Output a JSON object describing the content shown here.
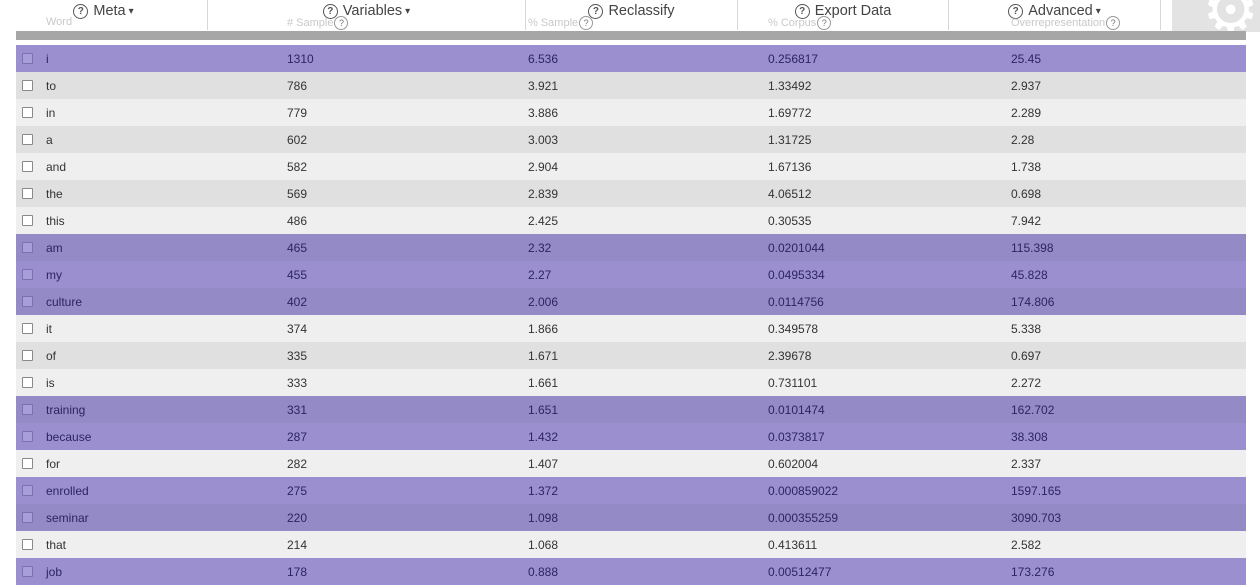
{
  "toolbar": {
    "menus": [
      {
        "label": "Meta",
        "has_help": true,
        "has_caret": true
      },
      {
        "label": "Variables",
        "has_help": true,
        "has_caret": true
      },
      {
        "label": "Reclassify",
        "has_help": true,
        "has_caret": false
      },
      {
        "label": "Export Data",
        "has_help": true,
        "has_caret": false
      },
      {
        "label": "Advanced",
        "has_help": true,
        "has_caret": true
      }
    ],
    "help_glyph": "?",
    "caret_glyph": "▾",
    "settings_icon": "gear-icon"
  },
  "table": {
    "columns": [
      "Word",
      "# Sample",
      "% Sample",
      "% Corpus",
      "Overrepresentation"
    ],
    "rows": [
      {
        "word": "i",
        "n_sample": "1310",
        "pct_sample": "6.536",
        "pct_corpus": "0.256817",
        "overrep": "25.45",
        "style": "hl"
      },
      {
        "word": "to",
        "n_sample": "786",
        "pct_sample": "3.921",
        "pct_corpus": "1.33492",
        "overrep": "2.937",
        "style": "dark"
      },
      {
        "word": "in",
        "n_sample": "779",
        "pct_sample": "3.886",
        "pct_corpus": "1.69772",
        "overrep": "2.289",
        "style": "light"
      },
      {
        "word": "a",
        "n_sample": "602",
        "pct_sample": "3.003",
        "pct_corpus": "1.31725",
        "overrep": "2.28",
        "style": "dark"
      },
      {
        "word": "and",
        "n_sample": "582",
        "pct_sample": "2.904",
        "pct_corpus": "1.67136",
        "overrep": "1.738",
        "style": "light"
      },
      {
        "word": "the",
        "n_sample": "569",
        "pct_sample": "2.839",
        "pct_corpus": "4.06512",
        "overrep": "0.698",
        "style": "dark"
      },
      {
        "word": "this",
        "n_sample": "486",
        "pct_sample": "2.425",
        "pct_corpus": "0.30535",
        "overrep": "7.942",
        "style": "light"
      },
      {
        "word": "am",
        "n_sample": "465",
        "pct_sample": "2.32",
        "pct_corpus": "0.0201044",
        "overrep": "115.398",
        "style": "hl2"
      },
      {
        "word": "my",
        "n_sample": "455",
        "pct_sample": "2.27",
        "pct_corpus": "0.0495334",
        "overrep": "45.828",
        "style": "hl"
      },
      {
        "word": "culture",
        "n_sample": "402",
        "pct_sample": "2.006",
        "pct_corpus": "0.0114756",
        "overrep": "174.806",
        "style": "hl2"
      },
      {
        "word": "it",
        "n_sample": "374",
        "pct_sample": "1.866",
        "pct_corpus": "0.349578",
        "overrep": "5.338",
        "style": "light"
      },
      {
        "word": "of",
        "n_sample": "335",
        "pct_sample": "1.671",
        "pct_corpus": "2.39678",
        "overrep": "0.697",
        "style": "dark"
      },
      {
        "word": "is",
        "n_sample": "333",
        "pct_sample": "1.661",
        "pct_corpus": "0.731101",
        "overrep": "2.272",
        "style": "light"
      },
      {
        "word": "training",
        "n_sample": "331",
        "pct_sample": "1.651",
        "pct_corpus": "0.0101474",
        "overrep": "162.702",
        "style": "hl2"
      },
      {
        "word": "because",
        "n_sample": "287",
        "pct_sample": "1.432",
        "pct_corpus": "0.0373817",
        "overrep": "38.308",
        "style": "hl"
      },
      {
        "word": "for",
        "n_sample": "282",
        "pct_sample": "1.407",
        "pct_corpus": "0.602004",
        "overrep": "2.337",
        "style": "light"
      },
      {
        "word": "enrolled",
        "n_sample": "275",
        "pct_sample": "1.372",
        "pct_corpus": "0.000859022",
        "overrep": "1597.165",
        "style": "hl"
      },
      {
        "word": "seminar",
        "n_sample": "220",
        "pct_sample": "1.098",
        "pct_corpus": "0.000355259",
        "overrep": "3090.703",
        "style": "hl2"
      },
      {
        "word": "that",
        "n_sample": "214",
        "pct_sample": "1.068",
        "pct_corpus": "0.413611",
        "overrep": "2.582",
        "style": "light"
      },
      {
        "word": "job",
        "n_sample": "178",
        "pct_sample": "0.888",
        "pct_corpus": "0.00512477",
        "overrep": "173.276",
        "style": "hl"
      }
    ]
  }
}
